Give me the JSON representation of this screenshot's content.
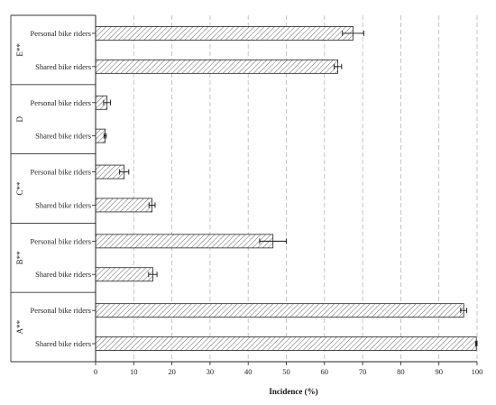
{
  "chart_data": {
    "type": "bar",
    "orientation": "horizontal",
    "xlabel": "Incidence (%)",
    "xlim": [
      0,
      100
    ],
    "xticks": [
      0,
      10,
      20,
      30,
      40,
      50,
      60,
      70,
      80,
      90,
      100
    ],
    "grid": "vertical dashed",
    "bar_fill": "diagonal hatch",
    "groups": [
      {
        "label": "E**",
        "bars": [
          {
            "category": "Personal bike riders",
            "value": 67.5,
            "error": 2.8
          },
          {
            "category": "Shared bike riders",
            "value": 63.5,
            "error": 1.0
          }
        ]
      },
      {
        "label": "D",
        "bars": [
          {
            "category": "Personal bike riders",
            "value": 3.0,
            "error": 0.9
          },
          {
            "category": "Shared bike riders",
            "value": 2.5,
            "error": 0.3
          }
        ]
      },
      {
        "label": "C**",
        "bars": [
          {
            "category": "Personal bike riders",
            "value": 7.5,
            "error": 1.2
          },
          {
            "category": "Shared bike riders",
            "value": 14.8,
            "error": 0.8
          }
        ]
      },
      {
        "label": "B**",
        "bars": [
          {
            "category": "Personal bike riders",
            "value": 46.5,
            "error": 3.5
          },
          {
            "category": "Shared bike riders",
            "value": 15.0,
            "error": 1.1
          }
        ]
      },
      {
        "label": "A**",
        "bars": [
          {
            "category": "Personal bike riders",
            "value": 96.5,
            "error": 0.8
          },
          {
            "category": "Shared bike riders",
            "value": 99.8,
            "error": 0.2
          }
        ]
      }
    ]
  }
}
